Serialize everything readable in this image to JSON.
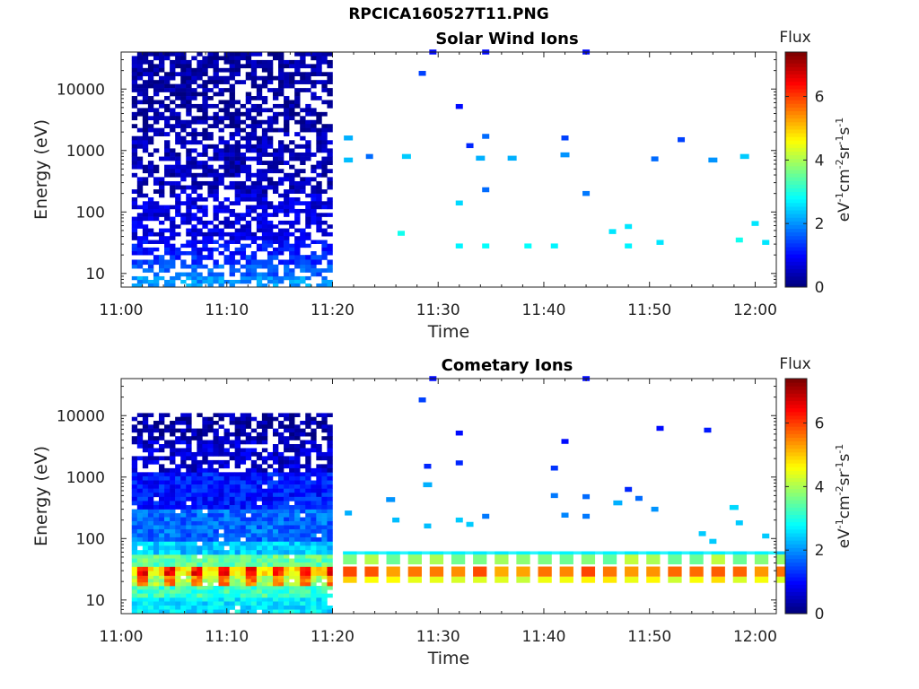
{
  "title": "RPCICA160527T11.PNG",
  "colorbar": {
    "label": "Flux",
    "unit_parts": [
      "eV",
      "-1",
      "cm",
      "-2",
      "sr",
      "-1",
      "s",
      "-1"
    ],
    "range": [
      0,
      7.4
    ],
    "ticks": [
      0,
      2,
      4,
      6
    ],
    "colormap": "jet"
  },
  "chart_data": [
    {
      "type": "heatmap",
      "title": "Solar Wind Ions",
      "xlabel": "Time",
      "ylabel": "Energy (eV)",
      "yscale": "log",
      "ylim": [
        6,
        40000
      ],
      "xlim": [
        "11:00",
        "12:02"
      ],
      "xticks": [
        "11:00",
        "11:10",
        "11:20",
        "11:30",
        "11:40",
        "11:50",
        "12:00"
      ],
      "yticks": [
        10,
        100,
        1000,
        10000
      ],
      "ytick_labels": [
        "10",
        "100",
        "1000",
        "10000"
      ],
      "dense_block": {
        "t_start": "11:01",
        "t_end": "11:20",
        "bands": [
          {
            "e_min": 6,
            "e_max": 9,
            "flux": 2.0
          },
          {
            "e_min": 9,
            "e_max": 14,
            "flux": 1.6
          },
          {
            "e_min": 14,
            "e_max": 20,
            "flux": 1.3
          },
          {
            "e_min": 20,
            "e_max": 35,
            "flux": 1.0
          },
          {
            "e_min": 35,
            "e_max": 200,
            "flux": 0.7
          },
          {
            "e_min": 200,
            "e_max": 2000,
            "flux": 0.4
          },
          {
            "e_min": 2000,
            "e_max": 40000,
            "flux": 0.25
          }
        ],
        "gap_fraction": 0.35
      },
      "points": [
        {
          "t": "11:21.5",
          "e": 1600,
          "flux": 2.2
        },
        {
          "t": "11:21.5",
          "e": 700,
          "flux": 2.3
        },
        {
          "t": "11:23.5",
          "e": 800,
          "flux": 1.7
        },
        {
          "t": "11:27",
          "e": 800,
          "flux": 2.4
        },
        {
          "t": "11:26.5",
          "e": 45,
          "flux": 2.9
        },
        {
          "t": "11:28.5",
          "e": 18000,
          "flux": 1.4
        },
        {
          "t": "11:29.5",
          "e": 40000,
          "flux": 1.0
        },
        {
          "t": "11:32",
          "e": 5200,
          "flux": 1.0
        },
        {
          "t": "11:32",
          "e": 140,
          "flux": 2.5
        },
        {
          "t": "11:32",
          "e": 28,
          "flux": 2.7
        },
        {
          "t": "11:33",
          "e": 1200,
          "flux": 1.2
        },
        {
          "t": "11:34",
          "e": 750,
          "flux": 2.2
        },
        {
          "t": "11:34.5",
          "e": 1700,
          "flux": 1.7
        },
        {
          "t": "11:34.5",
          "e": 230,
          "flux": 1.7
        },
        {
          "t": "11:34.5",
          "e": 40000,
          "flux": 1.0
        },
        {
          "t": "11:34.5",
          "e": 28,
          "flux": 2.8
        },
        {
          "t": "11:37",
          "e": 750,
          "flux": 2.2
        },
        {
          "t": "11:38.5",
          "e": 28,
          "flux": 2.8
        },
        {
          "t": "11:41",
          "e": 28,
          "flux": 2.7
        },
        {
          "t": "11:42",
          "e": 1600,
          "flux": 1.4
        },
        {
          "t": "11:42",
          "e": 850,
          "flux": 2.0
        },
        {
          "t": "11:44",
          "e": 200,
          "flux": 1.8
        },
        {
          "t": "11:44",
          "e": 40000,
          "flux": 1.0
        },
        {
          "t": "11:46.5",
          "e": 48,
          "flux": 2.6
        },
        {
          "t": "11:48",
          "e": 58,
          "flux": 2.6
        },
        {
          "t": "11:48",
          "e": 28,
          "flux": 2.7
        },
        {
          "t": "11:50.5",
          "e": 730,
          "flux": 1.7
        },
        {
          "t": "11:51",
          "e": 32,
          "flux": 2.6
        },
        {
          "t": "11:53",
          "e": 1500,
          "flux": 1.4
        },
        {
          "t": "11:56",
          "e": 700,
          "flux": 2.0
        },
        {
          "t": "11:59",
          "e": 800,
          "flux": 2.4
        },
        {
          "t": "11:58.5",
          "e": 35,
          "flux": 2.9
        },
        {
          "t": "12:00",
          "e": 65,
          "flux": 2.6
        },
        {
          "t": "12:01",
          "e": 32,
          "flux": 2.6
        }
      ]
    },
    {
      "type": "heatmap",
      "title": "Cometary Ions",
      "xlabel": "Time",
      "ylabel": "Energy (eV)",
      "yscale": "log",
      "ylim": [
        6,
        40000
      ],
      "xlim": [
        "11:00",
        "12:02"
      ],
      "xticks": [
        "11:00",
        "11:10",
        "11:20",
        "11:30",
        "11:40",
        "11:50",
        "12:00"
      ],
      "yticks": [
        10,
        100,
        1000,
        10000
      ],
      "ytick_labels": [
        "10",
        "100",
        "1000",
        "10000"
      ],
      "dense_block": {
        "t_start": "11:01",
        "t_end": "11:20",
        "bands": [
          {
            "e_min": 6,
            "e_max": 11,
            "flux": 2.6
          },
          {
            "e_min": 11,
            "e_max": 17,
            "flux": 3.2
          },
          {
            "e_min": 17,
            "e_max": 25,
            "flux": 4.8
          },
          {
            "e_min": 25,
            "e_max": 35,
            "flux": 5.6
          },
          {
            "e_min": 35,
            "e_max": 55,
            "flux": 3.5
          },
          {
            "e_min": 55,
            "e_max": 90,
            "flux": 2.4
          },
          {
            "e_min": 90,
            "e_max": 300,
            "flux": 1.7
          },
          {
            "e_min": 300,
            "e_max": 1200,
            "flux": 1.1
          },
          {
            "e_min": 1200,
            "e_max": 4000,
            "flux": 0.6
          },
          {
            "e_min": 4000,
            "e_max": 11000,
            "flux": 0.25
          }
        ],
        "gap_fraction": 0.1
      },
      "sparse_band": {
        "t_start": "11:21",
        "t_end": "12:02",
        "bands": [
          {
            "e_min": 19,
            "e_max": 24,
            "flux": 4.6
          },
          {
            "e_min": 24,
            "e_max": 35,
            "flux": 5.6
          },
          {
            "e_min": 38,
            "e_max": 55,
            "flux": 3.8
          },
          {
            "e_min": 55,
            "e_max": 62,
            "flux": 2.6
          }
        ]
      },
      "points": [
        {
          "t": "11:21.5",
          "e": 260,
          "flux": 2.2
        },
        {
          "t": "11:25.5",
          "e": 430,
          "flux": 2.0
        },
        {
          "t": "11:26",
          "e": 200,
          "flux": 2.3
        },
        {
          "t": "11:28.5",
          "e": 18000,
          "flux": 1.4
        },
        {
          "t": "11:29",
          "e": 1500,
          "flux": 1.2
        },
        {
          "t": "11:29",
          "e": 160,
          "flux": 2.3
        },
        {
          "t": "11:29",
          "e": 750,
          "flux": 2.2
        },
        {
          "t": "11:29.5",
          "e": 40000,
          "flux": 1.0
        },
        {
          "t": "11:32",
          "e": 5200,
          "flux": 1.0
        },
        {
          "t": "11:32",
          "e": 1700,
          "flux": 1.2
        },
        {
          "t": "11:32",
          "e": 200,
          "flux": 2.4
        },
        {
          "t": "11:33",
          "e": 170,
          "flux": 2.4
        },
        {
          "t": "11:34.5",
          "e": 230,
          "flux": 1.8
        },
        {
          "t": "11:41",
          "e": 1400,
          "flux": 1.3
        },
        {
          "t": "11:42",
          "e": 3800,
          "flux": 1.0
        },
        {
          "t": "11:41",
          "e": 500,
          "flux": 1.8
        },
        {
          "t": "11:42",
          "e": 240,
          "flux": 1.9
        },
        {
          "t": "11:44",
          "e": 480,
          "flux": 1.7
        },
        {
          "t": "11:44",
          "e": 230,
          "flux": 1.8
        },
        {
          "t": "11:44",
          "e": 40000,
          "flux": 1.0
        },
        {
          "t": "11:47",
          "e": 380,
          "flux": 2.2
        },
        {
          "t": "11:48",
          "e": 630,
          "flux": 1.2
        },
        {
          "t": "11:49",
          "e": 450,
          "flux": 1.7
        },
        {
          "t": "11:50.5",
          "e": 300,
          "flux": 2.0
        },
        {
          "t": "11:51",
          "e": 6200,
          "flux": 1.0
        },
        {
          "t": "11:55.5",
          "e": 5800,
          "flux": 1.1
        },
        {
          "t": "11:55",
          "e": 120,
          "flux": 2.4
        },
        {
          "t": "11:56",
          "e": 90,
          "flux": 2.4
        },
        {
          "t": "11:58",
          "e": 320,
          "flux": 2.5
        },
        {
          "t": "11:58.5",
          "e": 180,
          "flux": 2.4
        },
        {
          "t": "12:01",
          "e": 110,
          "flux": 2.4
        }
      ]
    }
  ]
}
